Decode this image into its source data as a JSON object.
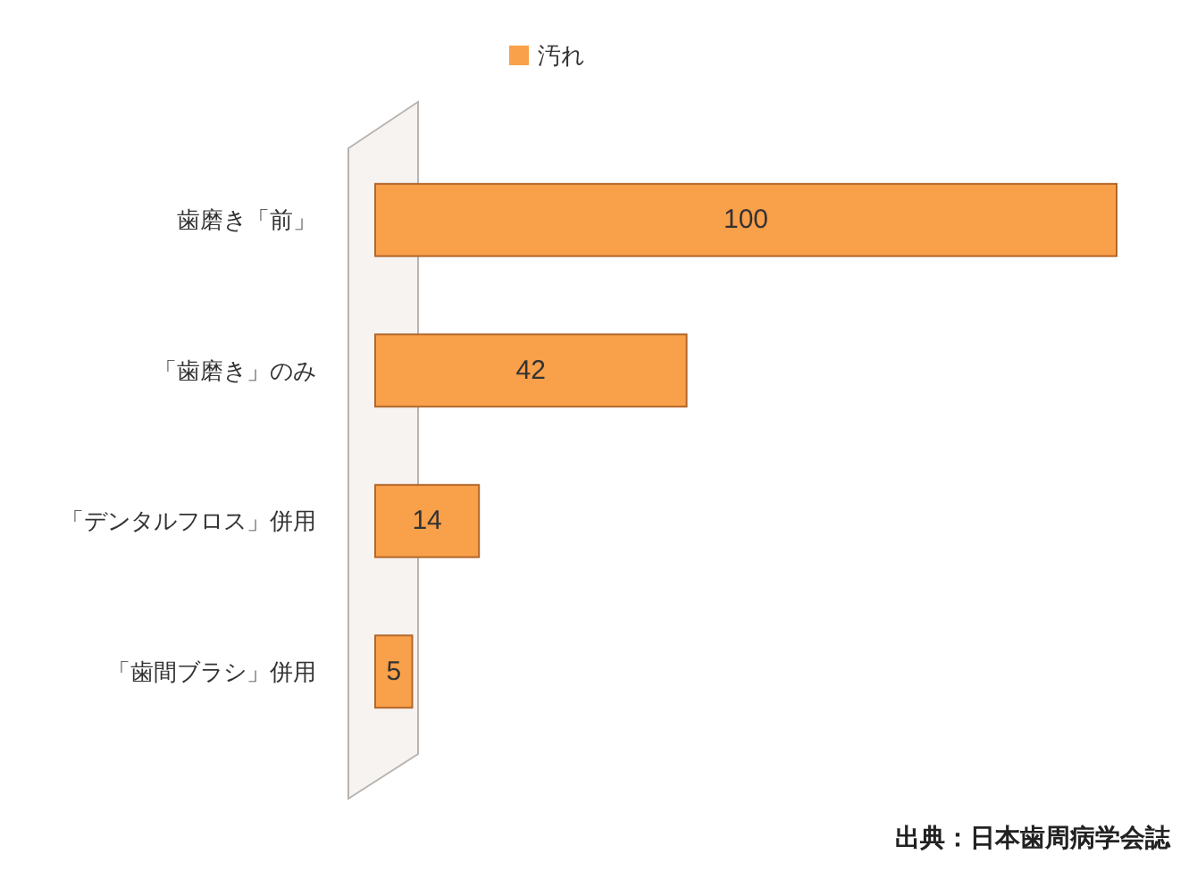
{
  "chart_data": {
    "type": "bar",
    "orientation": "horizontal",
    "categories": [
      "歯磨き「前」",
      "「歯磨き」のみ",
      "「デンタルフロス」併用",
      "「歯間ブラシ」併用"
    ],
    "series": [
      {
        "name": "汚れ",
        "color": "#f9a04a",
        "values": [
          100,
          42,
          14,
          5
        ]
      }
    ],
    "data_labels": true,
    "legend": "top",
    "tick_labels": "y",
    "annotations": [
      "出典：日本歯周病学会誌"
    ]
  }
}
